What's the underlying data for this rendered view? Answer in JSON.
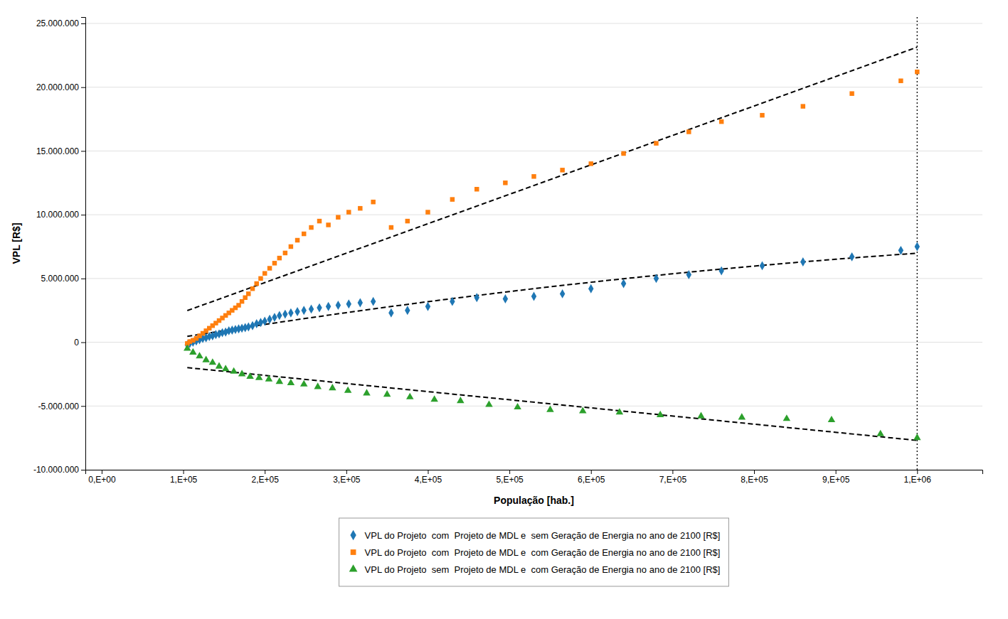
{
  "chart_data": {
    "type": "scatter",
    "xlabel": "População [hab.]",
    "ylabel": "VPL [R$]",
    "xlim": [
      -20000,
      1080000
    ],
    "ylim": [
      -10000000,
      25500000
    ],
    "xticks": [
      {
        "value": 0,
        "label": "0,E+00"
      },
      {
        "value": 100000,
        "label": "1,E+05"
      },
      {
        "value": 200000,
        "label": "2,E+05"
      },
      {
        "value": 300000,
        "label": "3,E+05"
      },
      {
        "value": 400000,
        "label": "4,E+05"
      },
      {
        "value": 500000,
        "label": "5,E+05"
      },
      {
        "value": 600000,
        "label": "6,E+05"
      },
      {
        "value": 700000,
        "label": "7,E+05"
      },
      {
        "value": 800000,
        "label": "8,E+05"
      },
      {
        "value": 900000,
        "label": "9,E+05"
      },
      {
        "value": 1000000,
        "label": "1,E+06"
      }
    ],
    "yticks": [
      {
        "value": -10000000,
        "label": "-10.000.000"
      },
      {
        "value": -5000000,
        "label": "-5.000.000"
      },
      0,
      {
        "value": 5000000,
        "label": "5.000.000"
      },
      {
        "value": 10000000,
        "label": "10.000.000"
      },
      {
        "value": 15000000,
        "label": "15.000.000"
      },
      {
        "value": 20000000,
        "label": "20.000.000"
      },
      {
        "value": 25000000,
        "label": "25.000.000"
      }
    ],
    "grid": "y",
    "legend": "bottom",
    "series": [
      {
        "name": "VPL do Projeto  com  Projeto de MDL e  sem Geração de Energia no ano de 2100 [R$]",
        "type": "scatter",
        "marker": "diamond",
        "x": [
          105000,
          108000,
          112000,
          116000,
          120000,
          124000,
          128000,
          132000,
          136000,
          140000,
          144000,
          148000,
          152000,
          156000,
          160000,
          164000,
          168000,
          172000,
          176000,
          180000,
          185000,
          190000,
          195000,
          200000,
          206000,
          212000,
          218000,
          225000,
          232000,
          240000,
          248000,
          257000,
          267000,
          278000,
          290000,
          303000,
          317000,
          333000,
          355000,
          375000,
          400000,
          430000,
          460000,
          495000,
          530000,
          565000,
          600000,
          640000,
          680000,
          720000,
          760000,
          810000,
          860000,
          920000,
          980000,
          1000000
        ],
        "values": [
          -200000,
          -100000,
          0,
          100000,
          200000,
          300000,
          350000,
          450000,
          500000,
          600000,
          650000,
          750000,
          800000,
          900000,
          950000,
          1000000,
          1050000,
          1100000,
          1150000,
          1200000,
          1300000,
          1450000,
          1550000,
          1650000,
          1800000,
          1950000,
          2100000,
          2200000,
          2300000,
          2400000,
          2500000,
          2600000,
          2700000,
          2800000,
          2900000,
          3000000,
          3100000,
          3200000,
          2300000,
          2500000,
          2800000,
          3200000,
          3500000,
          3400000,
          3600000,
          3800000,
          4200000,
          4600000,
          5000000,
          5300000,
          5600000,
          6000000,
          6300000,
          6700000,
          7200000,
          7500000
        ]
      },
      {
        "name": "VPL do Projeto  com  Projeto de MDL e  com Geração de Energia no ano de 2100 [R$]",
        "type": "scatter",
        "marker": "square",
        "x": [
          105000,
          108000,
          112000,
          116000,
          120000,
          124000,
          128000,
          132000,
          136000,
          140000,
          144000,
          148000,
          152000,
          156000,
          160000,
          164000,
          168000,
          172000,
          176000,
          180000,
          185000,
          190000,
          195000,
          200000,
          206000,
          212000,
          218000,
          225000,
          232000,
          240000,
          248000,
          257000,
          267000,
          278000,
          290000,
          303000,
          317000,
          333000,
          355000,
          375000,
          400000,
          430000,
          460000,
          495000,
          530000,
          565000,
          600000,
          640000,
          680000,
          720000,
          760000,
          810000,
          860000,
          920000,
          980000,
          1000000
        ],
        "values": [
          -100000,
          50000,
          150000,
          300000,
          500000,
          700000,
          900000,
          1100000,
          1300000,
          1500000,
          1700000,
          1900000,
          2100000,
          2300000,
          2500000,
          2700000,
          2900000,
          3200000,
          3500000,
          3800000,
          4200000,
          4600000,
          5000000,
          5400000,
          5800000,
          6200000,
          6600000,
          7000000,
          7500000,
          8000000,
          8500000,
          9000000,
          9500000,
          9200000,
          9800000,
          10200000,
          10500000,
          11000000,
          9000000,
          9500000,
          10200000,
          11200000,
          12000000,
          12500000,
          13000000,
          13500000,
          14000000,
          14800000,
          15600000,
          16500000,
          17300000,
          17800000,
          18500000,
          19500000,
          20500000,
          21200000
        ]
      },
      {
        "name": "VPL do Projeto  sem  Projeto de MDL e  com Geração de Energia no ano de 2100 [R$]",
        "type": "scatter",
        "marker": "triangle",
        "x": [
          105000,
          112000,
          120000,
          128000,
          136000,
          144000,
          152000,
          162000,
          172000,
          182000,
          193000,
          205000,
          218000,
          232000,
          248000,
          265000,
          283000,
          302000,
          325000,
          350000,
          378000,
          408000,
          440000,
          475000,
          510000,
          550000,
          590000,
          635000,
          685000,
          735000,
          785000,
          840000,
          895000,
          955000,
          1000000
        ],
        "values": [
          -500000,
          -800000,
          -1100000,
          -1400000,
          -1600000,
          -1900000,
          -2100000,
          -2300000,
          -2500000,
          -2700000,
          -2800000,
          -2900000,
          -3100000,
          -3200000,
          -3300000,
          -3500000,
          -3600000,
          -3800000,
          -4000000,
          -4100000,
          -4300000,
          -4500000,
          -4600000,
          -4900000,
          -5100000,
          -5300000,
          -5400000,
          -5500000,
          -5700000,
          -5800000,
          -5900000,
          -6000000,
          -6100000,
          -7200000,
          -7500000
        ]
      },
      {
        "type": "line",
        "line_style": "dashed",
        "color": "#000000",
        "x": [
          105000,
          150000,
          200000,
          250000,
          300000,
          350000,
          400000,
          450000,
          500000,
          550000,
          600000,
          650000,
          700000,
          750000,
          800000,
          850000,
          900000,
          950000,
          1000000
        ],
        "values": [
          459258,
          910726,
          1397008,
          1867132,
          2321098,
          2758906,
          3180556,
          3586048,
          3975382,
          4348558,
          4705576,
          5046436,
          5371138,
          5679682,
          5972068,
          6248296,
          6508366,
          6752278,
          6980032
        ]
      },
      {
        "type": "line",
        "line_style": "dashed",
        "color": "#000000",
        "x": [
          105000,
          1000000
        ],
        "values": [
          2481581,
          23141328
        ]
      },
      {
        "type": "line",
        "line_style": "dashed",
        "color": "#000000",
        "x": [
          105000,
          1000000
        ],
        "values": [
          -1990974,
          -7699740
        ]
      },
      {
        "type": "line",
        "line_style": "dotted",
        "color": "#000000",
        "x": [
          1000000,
          1000000
        ],
        "values": [
          -10000000,
          25500000
        ]
      }
    ]
  }
}
